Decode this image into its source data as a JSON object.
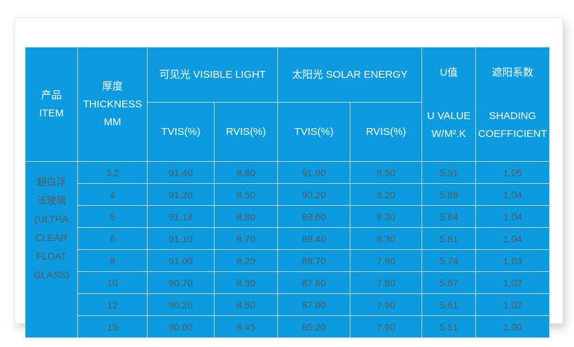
{
  "colors": {
    "table_blue": "#0C9BDF",
    "grid_line": "#D2D2D2",
    "header_text": "#FFFFFF",
    "data_text": "#595959",
    "card_background": "#FFFFFF"
  },
  "table": {
    "header": {
      "item": "产品\nITEM",
      "thickness": "厚度\nTHICKNESS\nMM",
      "visible_light": "可见光  VISIBLE LIGHT",
      "solar_energy": "太阳光  SOLAR ENERGY",
      "u_value_cn": "U值",
      "u_value_en": "U VALUE\nW/M².K",
      "shading_cn": "遮阳系数",
      "shading_en": "SHADING\nCOEFFICIENT",
      "sub_headers": [
        "TVIS(%)",
        "RVIS(%)",
        "TVIS(%)",
        "RVIS(%)"
      ]
    },
    "item_label": "超白浮\n法玻璃\n(ULTRA\nCLEAR\nFLOAT\nGLASS)",
    "rows": [
      [
        "3.2",
        "91.40",
        "8.80",
        "91.00",
        "8.50",
        "5.91",
        "1.05"
      ],
      [
        "4",
        "91.20",
        "8.50",
        "90.20",
        "8.20",
        "5.88",
        "1.04"
      ],
      [
        "5",
        "91.18",
        "8.80",
        "89.60",
        "8.30",
        "5.84",
        "1.04"
      ],
      [
        "6",
        "91.10",
        "8.70",
        "89.40",
        "8.30",
        "5.81",
        "1.04"
      ],
      [
        "8",
        "91.00",
        "8.20",
        "88.70",
        "7.90",
        "5.74",
        "1.03"
      ],
      [
        "10",
        "90.70",
        "8.30",
        "87.60",
        "7.80",
        "5.67",
        "1.02"
      ],
      [
        "12",
        "90.20",
        "8.50",
        "87.00",
        "7.90",
        "5.61",
        "1.02"
      ],
      [
        "15",
        "90.00",
        "8.45",
        "85.20",
        "7.90",
        "5.51",
        "1.00"
      ]
    ]
  },
  "chart_data": {
    "type": "table",
    "title": "超白浮法玻璃 (ULTRA CLEAR FLOAT GLASS)",
    "columns": [
      "厚度 THICKNESS MM",
      "可见光 VISIBLE LIGHT TVIS(%)",
      "可见光 VISIBLE LIGHT RVIS(%)",
      "太阳光 SOLAR ENERGY TVIS(%)",
      "太阳光 SOLAR ENERGY RVIS(%)",
      "U值 U VALUE W/M².K",
      "遮阳系数 SHADING COEFFICIENT"
    ],
    "rows": [
      [
        3.2,
        91.4,
        8.8,
        91.0,
        8.5,
        5.91,
        1.05
      ],
      [
        4,
        91.2,
        8.5,
        90.2,
        8.2,
        5.88,
        1.04
      ],
      [
        5,
        91.18,
        8.8,
        89.6,
        8.3,
        5.84,
        1.04
      ],
      [
        6,
        91.1,
        8.7,
        89.4,
        8.3,
        5.81,
        1.04
      ],
      [
        8,
        91.0,
        8.2,
        88.7,
        7.9,
        5.74,
        1.03
      ],
      [
        10,
        90.7,
        8.3,
        87.6,
        7.8,
        5.67,
        1.02
      ],
      [
        12,
        90.2,
        8.5,
        87.0,
        7.9,
        5.61,
        1.02
      ],
      [
        15,
        90.0,
        8.45,
        85.2,
        7.9,
        5.51,
        1.0
      ]
    ]
  }
}
